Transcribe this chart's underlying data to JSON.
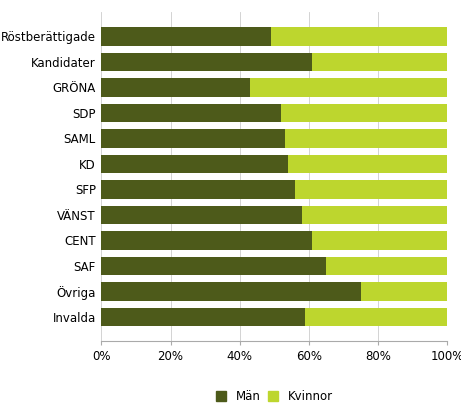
{
  "categories": [
    "Röstberättigade",
    "Kandidater",
    "GRÖNA",
    "SDP",
    "SAML",
    "KD",
    "SFP",
    "VÄNST",
    "CENT",
    "SAF",
    "Övriga",
    "Invalda"
  ],
  "man_values": [
    49,
    61,
    43,
    52,
    53,
    54,
    56,
    58,
    61,
    65,
    75,
    59
  ],
  "kvinna_values": [
    51,
    39,
    57,
    48,
    47,
    46,
    44,
    42,
    39,
    35,
    25,
    41
  ],
  "color_man": "#4d5a1a",
  "color_kvinna": "#bdd62e",
  "legend_man": "Män",
  "legend_kvinna": "Kvinnor",
  "background_color": "#ffffff",
  "bar_height": 0.72,
  "grid_color": "#cccccc"
}
